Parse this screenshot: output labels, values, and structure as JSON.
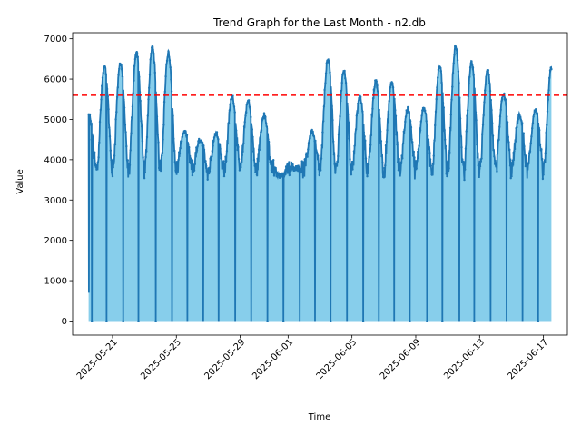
{
  "chart_data": {
    "type": "area",
    "title": "Trend Graph for the Last Month - n2.db",
    "xlabel": "Time",
    "ylabel": "Value",
    "xlim": [
      "2025-05-18T12:00",
      "2025-06-18T12:00"
    ],
    "ylim": [
      -350,
      7150
    ],
    "x_ticks": [
      "2025-05-21",
      "2025-05-25",
      "2025-05-29",
      "2025-06-01",
      "2025-06-05",
      "2025-06-09",
      "2025-06-13",
      "2025-06-17"
    ],
    "y_ticks": [
      0,
      1000,
      2000,
      3000,
      4000,
      5000,
      6000,
      7000
    ],
    "data_start": "2025-05-19T12:00",
    "data_end": "2025-06-17T12:00",
    "threshold": 5600,
    "daily_peaks": [
      {
        "date": "2025-05-19",
        "peak": 5150
      },
      {
        "date": "2025-05-20",
        "peak": 6300
      },
      {
        "date": "2025-05-21",
        "peak": 6400
      },
      {
        "date": "2025-05-22",
        "peak": 6650
      },
      {
        "date": "2025-05-23",
        "peak": 6800
      },
      {
        "date": "2025-05-24",
        "peak": 6650
      },
      {
        "date": "2025-05-25",
        "peak": 4700
      },
      {
        "date": "2025-05-26",
        "peak": 4500
      },
      {
        "date": "2025-05-27",
        "peak": 4650
      },
      {
        "date": "2025-05-28",
        "peak": 5550
      },
      {
        "date": "2025-05-29",
        "peak": 5450
      },
      {
        "date": "2025-05-30",
        "peak": 5100
      },
      {
        "date": "2025-05-31",
        "peak": 3600
      },
      {
        "date": "2025-06-01",
        "peak": 3800
      },
      {
        "date": "2025-06-02",
        "peak": 4700
      },
      {
        "date": "2025-06-03",
        "peak": 6500
      },
      {
        "date": "2025-06-04",
        "peak": 6200
      },
      {
        "date": "2025-06-05",
        "peak": 5550
      },
      {
        "date": "2025-06-06",
        "peak": 5950
      },
      {
        "date": "2025-06-07",
        "peak": 5900
      },
      {
        "date": "2025-06-08",
        "peak": 5250
      },
      {
        "date": "2025-06-09",
        "peak": 5300
      },
      {
        "date": "2025-06-10",
        "peak": 6300
      },
      {
        "date": "2025-06-11",
        "peak": 6800
      },
      {
        "date": "2025-06-12",
        "peak": 6400
      },
      {
        "date": "2025-06-13",
        "peak": 6200
      },
      {
        "date": "2025-06-14",
        "peak": 5650
      },
      {
        "date": "2025-06-15",
        "peak": 5100
      },
      {
        "date": "2025-06-16",
        "peak": 5250
      },
      {
        "date": "2025-06-17",
        "peak": 6300
      }
    ],
    "baseline_range": [
      2950,
      4000
    ],
    "colors": {
      "fill": "#87ceeb",
      "line": "#1f77b4",
      "threshold": "#ff0000"
    },
    "grid": false,
    "legend": "none"
  }
}
